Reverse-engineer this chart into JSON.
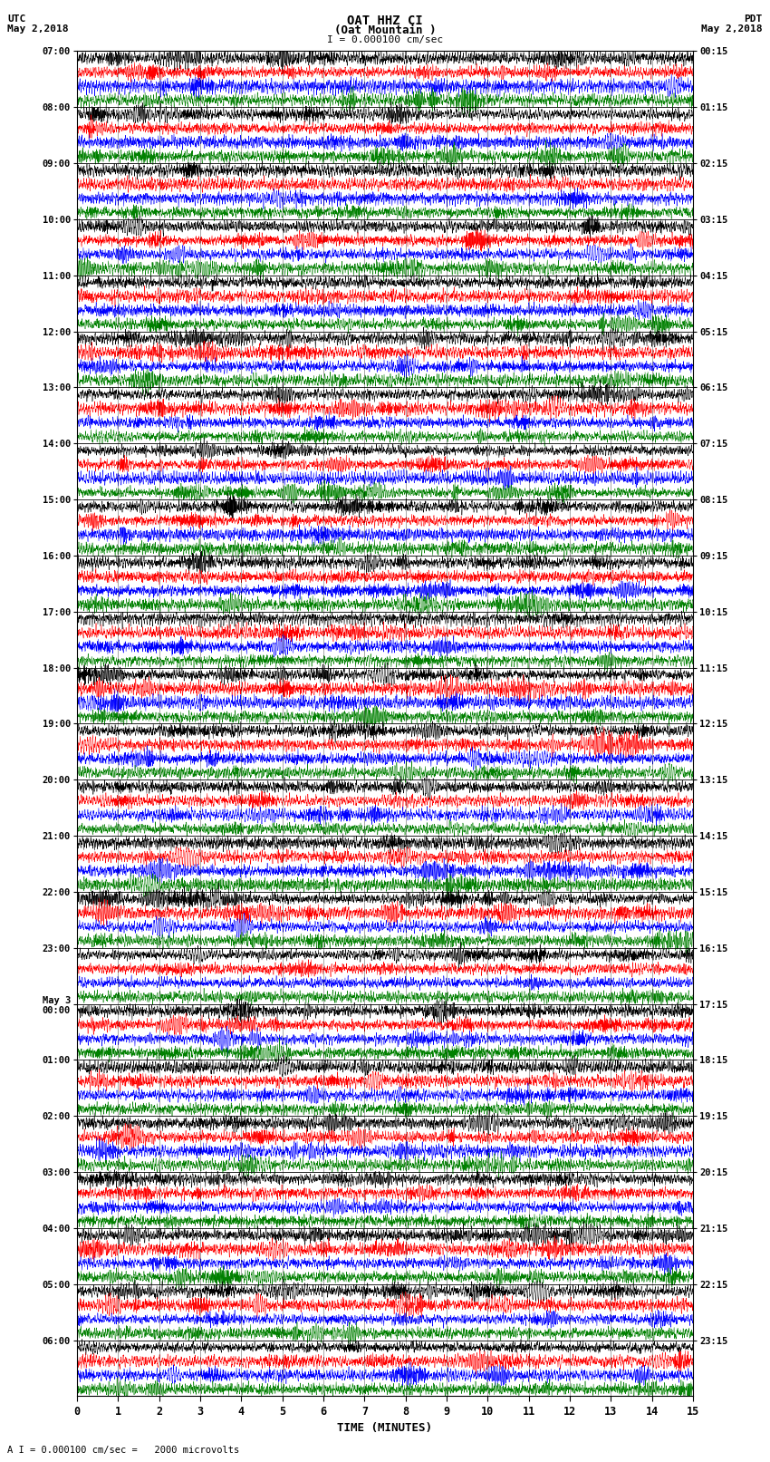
{
  "title_line1": "OAT HHZ CI",
  "title_line2": "(Oat Mountain )",
  "scale_label": "I = 0.000100 cm/sec",
  "left_timezone": "UTC",
  "left_date": "May 2,2018",
  "right_timezone": "PDT",
  "right_date": "May 2,2018",
  "bottom_label": "TIME (MINUTES)",
  "bottom_note": "A I = 0.000100 cm/sec =   2000 microvolts",
  "left_times": [
    "07:00",
    "08:00",
    "09:00",
    "10:00",
    "11:00",
    "12:00",
    "13:00",
    "14:00",
    "15:00",
    "16:00",
    "17:00",
    "18:00",
    "19:00",
    "20:00",
    "21:00",
    "22:00",
    "23:00",
    "May 3\n00:00",
    "01:00",
    "02:00",
    "03:00",
    "04:00",
    "05:00",
    "06:00"
  ],
  "right_times": [
    "00:15",
    "01:15",
    "02:15",
    "03:15",
    "04:15",
    "05:15",
    "06:15",
    "07:15",
    "08:15",
    "09:15",
    "10:15",
    "11:15",
    "12:15",
    "13:15",
    "14:15",
    "15:15",
    "16:15",
    "17:15",
    "18:15",
    "19:15",
    "20:15",
    "21:15",
    "22:15",
    "23:15"
  ],
  "n_rows": 24,
  "traces_per_row": 4,
  "colors": [
    "black",
    "red",
    "blue",
    "green"
  ],
  "bg_color": "white",
  "xlim": [
    0,
    15
  ],
  "xticks": [
    0,
    1,
    2,
    3,
    4,
    5,
    6,
    7,
    8,
    9,
    10,
    11,
    12,
    13,
    14,
    15
  ],
  "noise_amplitude": 0.055,
  "base_freq": 6.0,
  "linewidth": 0.35
}
